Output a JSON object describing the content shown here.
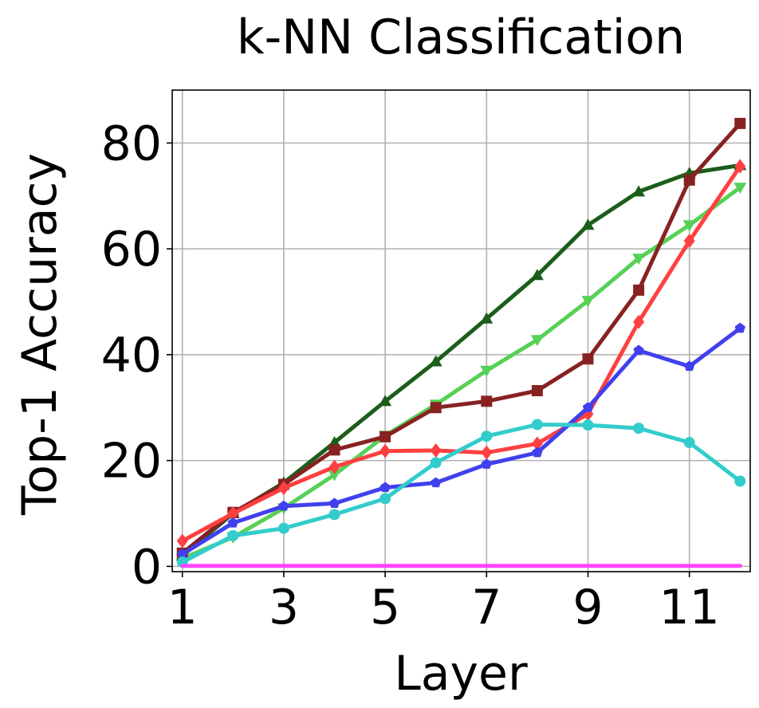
{
  "chart_data": {
    "type": "line",
    "title": "k-NN Classification",
    "xlabel": "Layer",
    "ylabel": "Top-1 Accuracy",
    "xlim": [
      0.8,
      12.2
    ],
    "ylim": [
      -1,
      90
    ],
    "xticks": [
      1,
      3,
      5,
      7,
      9,
      11
    ],
    "yticks": [
      0,
      20,
      40,
      60,
      80
    ],
    "grid": true,
    "x": [
      1,
      2,
      3,
      4,
      5,
      6,
      7,
      8,
      9,
      10,
      11,
      12
    ],
    "series": [
      {
        "color": "#1b5e1b",
        "marker": "triangle-up",
        "values": [
          2.0,
          10.0,
          15.8,
          23.4,
          31.2,
          38.7,
          46.8,
          55.0,
          64.5,
          70.8,
          74.3,
          75.8
        ]
      },
      {
        "color": "#57d057",
        "marker": "triangle-down",
        "values": [
          1.5,
          5.5,
          11.0,
          17.3,
          24.7,
          30.6,
          37.0,
          42.8,
          50.2,
          58.2,
          64.5,
          71.6
        ]
      },
      {
        "color": "#882222",
        "marker": "square",
        "values": [
          2.5,
          10.2,
          15.5,
          22.0,
          24.5,
          30.0,
          31.2,
          33.2,
          39.2,
          52.2,
          73.0,
          83.7
        ]
      },
      {
        "color": "#ff4040",
        "marker": "diamond",
        "values": [
          4.8,
          10.0,
          14.8,
          18.8,
          21.8,
          21.9,
          21.5,
          23.2,
          28.8,
          46.2,
          61.5,
          75.6
        ]
      },
      {
        "color": "#4040ee",
        "marker": "pentagon",
        "values": [
          2.3,
          8.2,
          11.4,
          11.9,
          14.9,
          15.8,
          19.3,
          21.5,
          30.0,
          40.8,
          37.8,
          45.0
        ]
      },
      {
        "color": "#33cccc",
        "marker": "circle",
        "values": [
          0.8,
          5.8,
          7.2,
          9.8,
          12.8,
          19.6,
          24.6,
          26.8,
          26.7,
          26.1,
          23.4,
          16.1
        ]
      },
      {
        "color": "#ff44ff",
        "marker": "none",
        "values": [
          0.1,
          0.1,
          0.1,
          0.1,
          0.1,
          0.1,
          0.1,
          0.1,
          0.1,
          0.1,
          0.1,
          0.1
        ]
      }
    ]
  }
}
